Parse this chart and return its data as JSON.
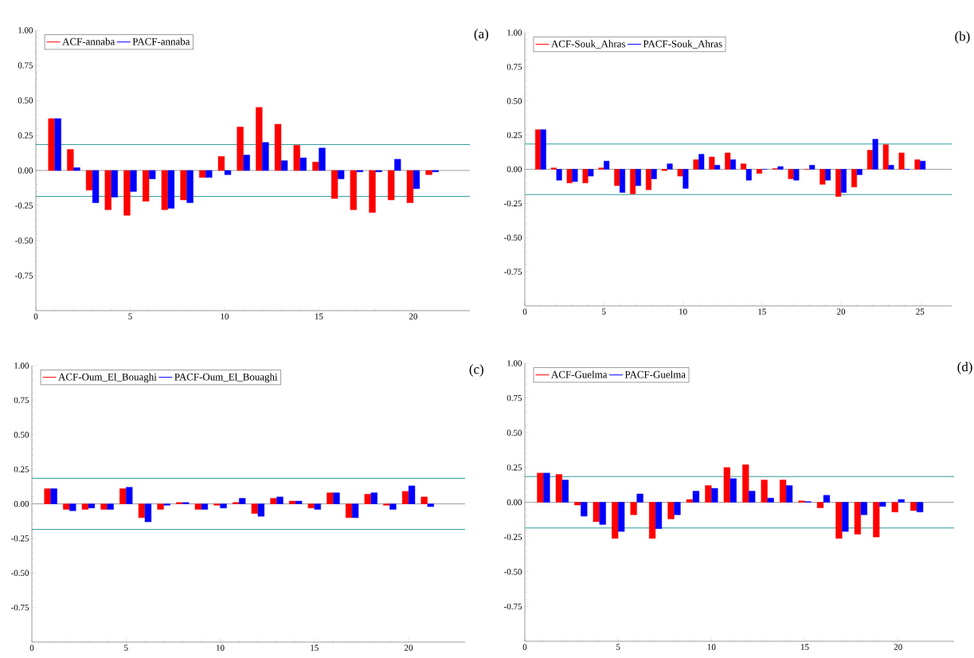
{
  "chart_data": [
    {
      "type": "bar",
      "title": "(a)",
      "x": [
        1,
        2,
        3,
        4,
        5,
        6,
        7,
        8,
        9,
        10,
        11,
        12,
        13,
        14,
        15,
        16,
        17,
        18,
        19,
        20,
        21
      ],
      "series": [
        {
          "name": "ACF-annaba",
          "color": "#ff0000",
          "values": [
            0.37,
            0.15,
            -0.14,
            -0.28,
            -0.32,
            -0.22,
            -0.28,
            -0.21,
            -0.05,
            0.1,
            0.31,
            0.45,
            0.33,
            0.18,
            0.06,
            -0.2,
            -0.28,
            -0.3,
            -0.21,
            -0.23,
            -0.03
          ]
        },
        {
          "name": "PACF-annaba",
          "color": "#0000ff",
          "values": [
            0.37,
            0.02,
            -0.23,
            -0.19,
            -0.15,
            -0.06,
            -0.27,
            -0.23,
            -0.05,
            -0.03,
            0.11,
            0.2,
            0.07,
            0.09,
            0.16,
            -0.06,
            -0.01,
            -0.01,
            0.08,
            -0.13,
            -0.01
          ]
        }
      ],
      "xlim": [
        0,
        23
      ],
      "xticks": [
        0,
        5,
        10,
        15,
        20
      ],
      "ylim": [
        -1,
        1
      ],
      "yticks": [
        {
          "value": 1,
          "label": "1.00"
        },
        {
          "value": 0.75,
          "label": "0.75"
        },
        {
          "value": 0.5,
          "label": "0.50"
        },
        {
          "value": 0.25,
          "label": "0.25"
        },
        {
          "value": 0,
          "label": "0.00"
        },
        {
          "value": -0.25,
          "label": "-0.25"
        },
        {
          "value": -0.5,
          "label": "-0.50"
        },
        {
          "value": -0.75,
          "label": "-0.75"
        }
      ],
      "ref_lines": [
        {
          "axis": "y",
          "value": 0.185,
          "color": "#2e9a9a"
        },
        {
          "axis": "y",
          "value": -0.185,
          "color": "#2e9a9a"
        },
        {
          "axis": "y",
          "value": 0,
          "color": "#a0a0a0"
        }
      ],
      "legend": "top left"
    },
    {
      "type": "bar",
      "title": "(b)",
      "x": [
        1,
        2,
        3,
        4,
        5,
        6,
        7,
        8,
        9,
        10,
        11,
        12,
        13,
        14,
        15,
        16,
        17,
        18,
        19,
        20,
        21,
        22,
        23,
        24,
        25
      ],
      "series": [
        {
          "name": "ACF-Souk_Ahras",
          "color": "#ff0000",
          "values": [
            0.29,
            0.01,
            -0.1,
            -0.1,
            0.01,
            -0.12,
            -0.18,
            -0.15,
            -0.01,
            -0.05,
            0.07,
            0.09,
            0.12,
            0.04,
            -0.03,
            0.005,
            -0.07,
            0.0,
            -0.11,
            -0.2,
            -0.13,
            0.14,
            0.18,
            0.12,
            0.07
          ]
        },
        {
          "name": "PACF-Souk_Ahras",
          "color": "#0000ff",
          "values": [
            0.29,
            -0.08,
            -0.09,
            -0.05,
            0.06,
            -0.17,
            -0.12,
            -0.07,
            0.04,
            -0.14,
            0.11,
            0.03,
            0.07,
            -0.08,
            0.0,
            0.02,
            -0.08,
            0.03,
            -0.08,
            -0.17,
            -0.04,
            0.22,
            0.03,
            0.0,
            0.06
          ]
        }
      ],
      "xlim": [
        0,
        27
      ],
      "xticks": [
        0,
        5,
        10,
        15,
        20,
        25
      ],
      "ylim": [
        -1,
        1
      ],
      "yticks": [
        {
          "value": 1,
          "label": "1.00"
        },
        {
          "value": 0.75,
          "label": "0.75"
        },
        {
          "value": 0.5,
          "label": "0.50"
        },
        {
          "value": 0.25,
          "label": "0.25"
        },
        {
          "value": 0,
          "label": "0.00"
        },
        {
          "value": -0.25,
          "label": "-0.25"
        },
        {
          "value": -0.5,
          "label": "-0.50"
        },
        {
          "value": -0.75,
          "label": "-0.75"
        }
      ],
      "ref_lines": [
        {
          "axis": "y",
          "value": 0.185,
          "color": "#2e9a9a"
        },
        {
          "axis": "y",
          "value": -0.185,
          "color": "#2e9a9a"
        },
        {
          "axis": "y",
          "value": 0,
          "color": "#a0a0a0"
        }
      ],
      "legend": "top left"
    },
    {
      "type": "bar",
      "title": "(c)",
      "x": [
        1,
        2,
        3,
        4,
        5,
        6,
        7,
        8,
        9,
        10,
        11,
        12,
        13,
        14,
        15,
        16,
        17,
        18,
        19,
        20,
        21
      ],
      "series": [
        {
          "name": "ACF-Oum_El_Bouaghi",
          "color": "#ff0000",
          "values": [
            0.11,
            -0.04,
            -0.04,
            -0.04,
            0.11,
            -0.1,
            -0.04,
            0.01,
            -0.04,
            -0.01,
            0.01,
            -0.07,
            0.04,
            0.02,
            -0.03,
            0.08,
            -0.1,
            0.07,
            -0.01,
            0.09,
            0.05
          ]
        },
        {
          "name": "PACF-Oum_El_Bouaghi",
          "color": "#0000ff",
          "values": [
            0.11,
            -0.05,
            -0.03,
            -0.04,
            0.12,
            -0.13,
            -0.01,
            0.01,
            -0.04,
            -0.03,
            0.04,
            -0.09,
            0.05,
            0.02,
            -0.04,
            0.08,
            -0.1,
            0.08,
            -0.04,
            0.13,
            -0.02
          ]
        }
      ],
      "xlim": [
        0,
        23
      ],
      "xticks": [
        0,
        5,
        10,
        15,
        20
      ],
      "ylim": [
        -1,
        1
      ],
      "yticks": [
        {
          "value": 1,
          "label": "1.00"
        },
        {
          "value": 0.75,
          "label": "0.75"
        },
        {
          "value": 0.5,
          "label": "0.50"
        },
        {
          "value": 0.25,
          "label": "0.25"
        },
        {
          "value": 0,
          "label": "0.00"
        },
        {
          "value": -0.25,
          "label": "-0.25"
        },
        {
          "value": -0.5,
          "label": "-0.50"
        },
        {
          "value": -0.75,
          "label": "-0.75"
        }
      ],
      "ref_lines": [
        {
          "axis": "y",
          "value": 0.185,
          "color": "#2e9a9a"
        },
        {
          "axis": "y",
          "value": -0.185,
          "color": "#2e9a9a"
        },
        {
          "axis": "y",
          "value": 0,
          "color": "#a0a0a0"
        }
      ],
      "legend": "top left"
    },
    {
      "type": "bar",
      "title": "(d)",
      "x": [
        1,
        2,
        3,
        4,
        5,
        6,
        7,
        8,
        9,
        10,
        11,
        12,
        13,
        14,
        15,
        16,
        17,
        18,
        19,
        20,
        21
      ],
      "series": [
        {
          "name": "ACF-Guelma",
          "color": "#ff0000",
          "values": [
            0.21,
            0.2,
            -0.02,
            -0.14,
            -0.26,
            -0.09,
            -0.26,
            -0.12,
            0.02,
            0.12,
            0.25,
            0.27,
            0.16,
            0.16,
            0.01,
            -0.04,
            -0.26,
            -0.23,
            -0.25,
            -0.07,
            -0.06
          ]
        },
        {
          "name": "PACF-Guelma",
          "color": "#0000ff",
          "values": [
            0.21,
            0.16,
            -0.1,
            -0.16,
            -0.21,
            0.06,
            -0.19,
            -0.09,
            0.08,
            0.1,
            0.17,
            0.08,
            0.03,
            0.12,
            0.005,
            0.05,
            -0.21,
            -0.09,
            -0.03,
            0.02,
            -0.07
          ]
        }
      ],
      "xlim": [
        0,
        23
      ],
      "xticks": [
        0,
        5,
        10,
        15,
        20
      ],
      "ylim": [
        -1,
        1
      ],
      "yticks": [
        {
          "value": 1,
          "label": "1.00"
        },
        {
          "value": 0.75,
          "label": "0.75"
        },
        {
          "value": 0.5,
          "label": "0.50"
        },
        {
          "value": 0.25,
          "label": "0.25"
        },
        {
          "value": 0,
          "label": "0.00"
        },
        {
          "value": -0.25,
          "label": "-0.25"
        },
        {
          "value": -0.5,
          "label": "-0.50"
        },
        {
          "value": -0.75,
          "label": "-0.75"
        }
      ],
      "ref_lines": [
        {
          "axis": "y",
          "value": 0.185,
          "color": "#2e9a9a"
        },
        {
          "axis": "y",
          "value": -0.185,
          "color": "#2e9a9a"
        },
        {
          "axis": "y",
          "value": 0,
          "color": "#a0a0a0"
        }
      ],
      "legend": "top left"
    }
  ]
}
